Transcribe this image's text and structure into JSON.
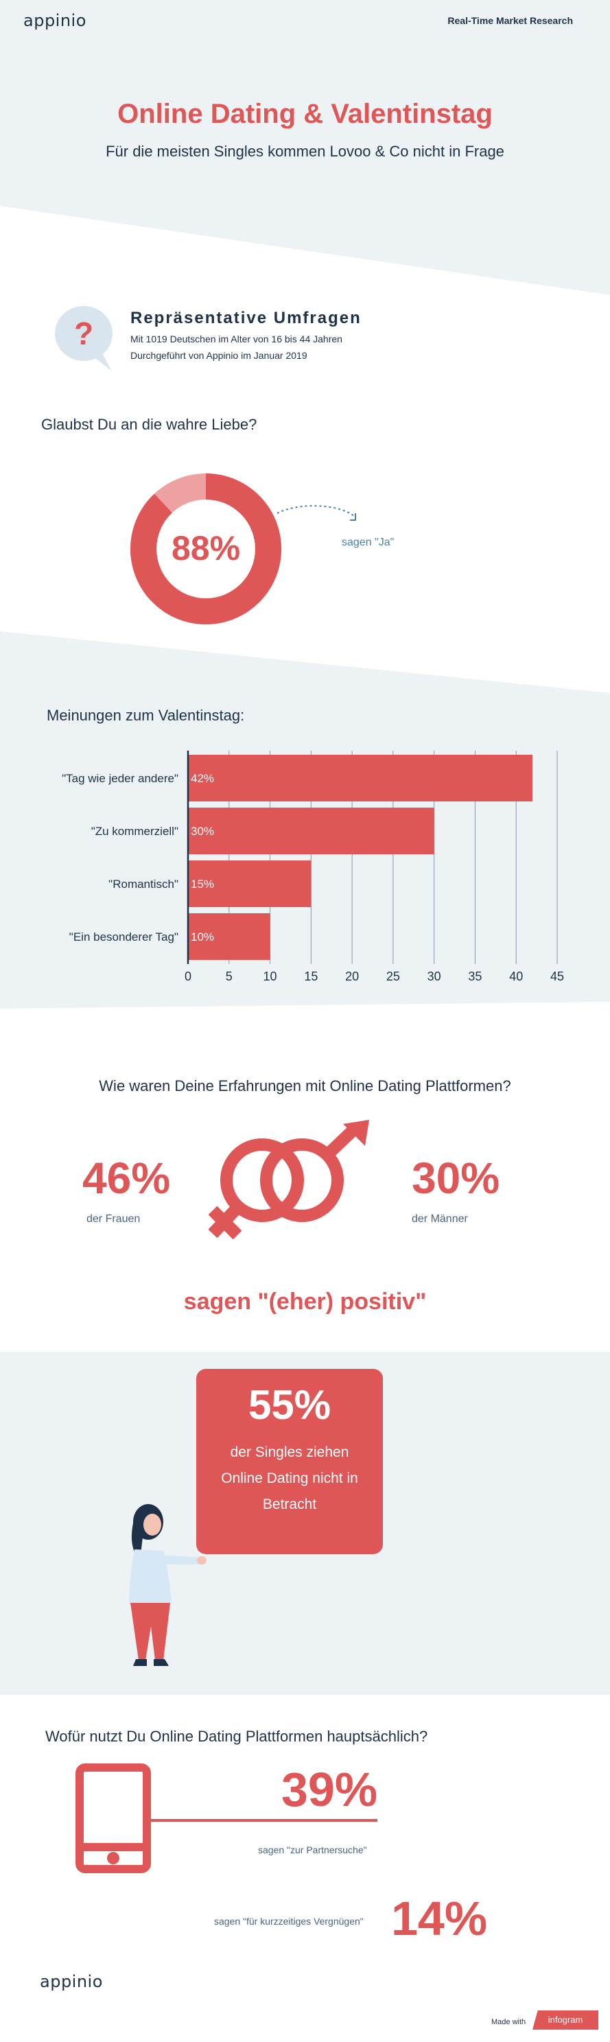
{
  "header": {
    "logo": "appinio",
    "tagline": "Real-Time Market Research"
  },
  "hero": {
    "title": "Online Dating & Valentinstag",
    "subtitle": "Für die meisten Singles kommen Lovoo & Co nicht in Frage"
  },
  "survey": {
    "heading": "Repräsentative Umfragen",
    "line1": "Mit 1019 Deutschen im Alter von 16 bis 44 Jahren",
    "line2": "Durchgeführt von Appinio im Januar 2019",
    "icon": "question-bubble-icon"
  },
  "love": {
    "question": "Glaubst Du an die wahre Liebe?",
    "percent_label": "88%",
    "caption": "sagen \"Ja\"",
    "yes_share": 0.88
  },
  "valentine": {
    "heading": "Meinungen zum Valentinstag:"
  },
  "chart_data": {
    "type": "bar",
    "orientation": "horizontal",
    "categories": [
      "\"Tag wie jeder andere\"",
      "\"Zu kommerziell\"",
      "\"Romantisch\"",
      "\"Ein besonderer Tag\""
    ],
    "values": [
      42,
      30,
      15,
      10
    ],
    "value_labels": [
      "42%",
      "30%",
      "15%",
      "10%"
    ],
    "xlim": [
      0,
      45
    ],
    "ticks": [
      0,
      5,
      10,
      15,
      20,
      25,
      30,
      35,
      40,
      45
    ],
    "tick_labels": [
      "0",
      "5",
      "10",
      "15",
      "20",
      "25",
      "30",
      "35",
      "40",
      "45"
    ],
    "grid": true,
    "color": "#de5656"
  },
  "experience": {
    "question": "Wie waren Deine Erfahrungen mit Online Dating Plattformen?",
    "women_percent": "46%",
    "women_label": "der Frauen",
    "men_percent": "30%",
    "men_label": "der Männer",
    "summary": "sagen \"(eher) positiv\"",
    "icon": "gender-symbols-icon"
  },
  "singles": {
    "percent": "55%",
    "line1": "der Singles ziehen",
    "line2": "Online Dating nicht in",
    "line3": "Betracht"
  },
  "usage": {
    "question": "Wofür nutzt Du Online Dating Plattformen hauptsächlich?",
    "partner_percent": "39%",
    "partner_label": "sagen \"zur Partnersuche\"",
    "fun_percent": "14%",
    "fun_label": "sagen \"für kurzzeitiges Vergnügen\"",
    "icon": "smartphone-icon"
  },
  "footer": {
    "logo": "appinio",
    "made_with": "Made with",
    "brand": "infogram"
  },
  "colors": {
    "accent": "#de5656",
    "accent_light": "#eea1a1",
    "navy": "#1e3148",
    "band": "#edf2f5"
  }
}
